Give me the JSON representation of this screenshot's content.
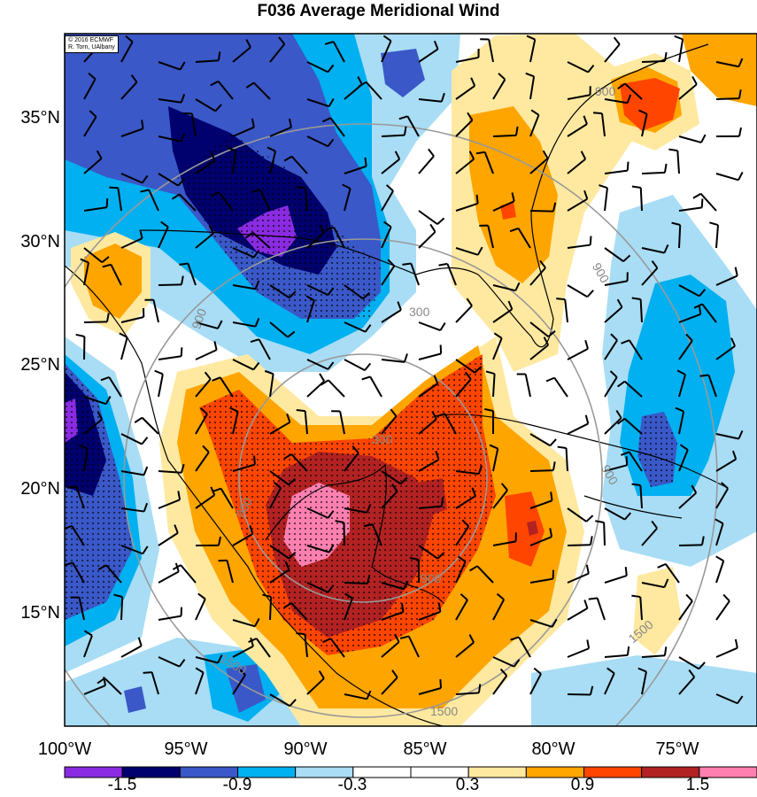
{
  "title": "F036 Average Meridional Wind",
  "credit": {
    "line1": "© 2016 ECMWF",
    "line2": "R. Torn, UAlbany"
  },
  "lat_labels": [
    "35°N",
    "30°N",
    "25°N",
    "20°N",
    "15°N"
  ],
  "lon_labels": [
    "100°W",
    "95°W",
    "90°W",
    "85°W",
    "80°W",
    "75°W"
  ],
  "contour_labels": [
    "300",
    "300",
    "900",
    "900",
    "900",
    "900",
    "900",
    "900",
    "1500",
    "1500",
    "1500"
  ],
  "colorbar": {
    "tick_labels": [
      "-1.5",
      "-0.9",
      "-0.3",
      "0.3",
      "0.9",
      "1.5"
    ],
    "colors": [
      "#8a2be2",
      "#00006e",
      "#3a58c8",
      "#00b0f0",
      "#a8ddf5",
      "#ffffff",
      "#ffffff",
      "#ffe9a0",
      "#ffa500",
      "#ff4500",
      "#b22222",
      "#ff80b0"
    ]
  },
  "colors": {
    "strong_neg": "#00006e",
    "neg": "#3a58c8",
    "mid_neg": "#00b0f0",
    "weak_neg": "#a8ddf5",
    "weak_pos": "#ffe9a0",
    "mid_pos": "#ffa500",
    "pos": "#ff4500",
    "strong_pos": "#b22222",
    "max_pos": "#ff80b0",
    "min_neg": "#8a2be2",
    "land_white": "#ffffff",
    "contour_gray": "#999999"
  }
}
